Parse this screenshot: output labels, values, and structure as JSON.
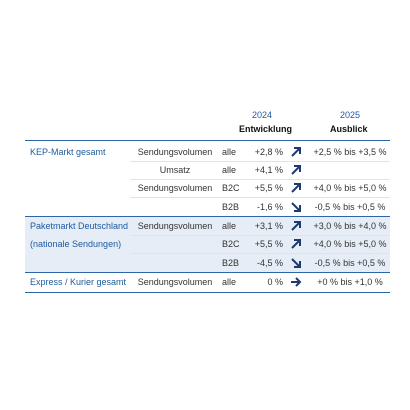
{
  "header": {
    "year_2024": "2024",
    "label_2024": "Entwicklung",
    "year_2025": "2025",
    "label_2025": "Ausblick"
  },
  "rows": [
    {
      "segment": "KEP-Markt gesamt",
      "metric": "Sendungsvolumen",
      "group": "alle",
      "change": "+2,8 %",
      "outlook": "+2,5 % bis +3,5 %"
    },
    {
      "metric": "Umsatz",
      "group": "alle",
      "change": "+4,1 %"
    },
    {
      "metric": "Sendungsvolumen",
      "group": "B2C",
      "change": "+5,5 %",
      "outlook": "+4,0 % bis +5,0 %"
    },
    {
      "group": "B2B",
      "change": "-1,6 %",
      "outlook": "-0,5 % bis +0,5 %"
    },
    {
      "segment": "Paketmarkt Deutschland",
      "metric": "Sendungsvolumen",
      "group": "alle",
      "change": "+3,1 %",
      "outlook": "+3,0 % bis +4,0 %"
    },
    {
      "segment": "(nationale Sendungen)",
      "group": "B2C",
      "change": "+5,5 %",
      "outlook": "+4,0 % bis +5,0 %"
    },
    {
      "group": "B2B",
      "change": "-4,5 %",
      "outlook": "-0,5 % bis +0,5 %"
    },
    {
      "segment": "Express / Kurier gesamt",
      "metric": "Sendungsvolumen",
      "group": "alle",
      "change": "0 %",
      "outlook": "+0 % bis +1,0 %"
    }
  ]
}
